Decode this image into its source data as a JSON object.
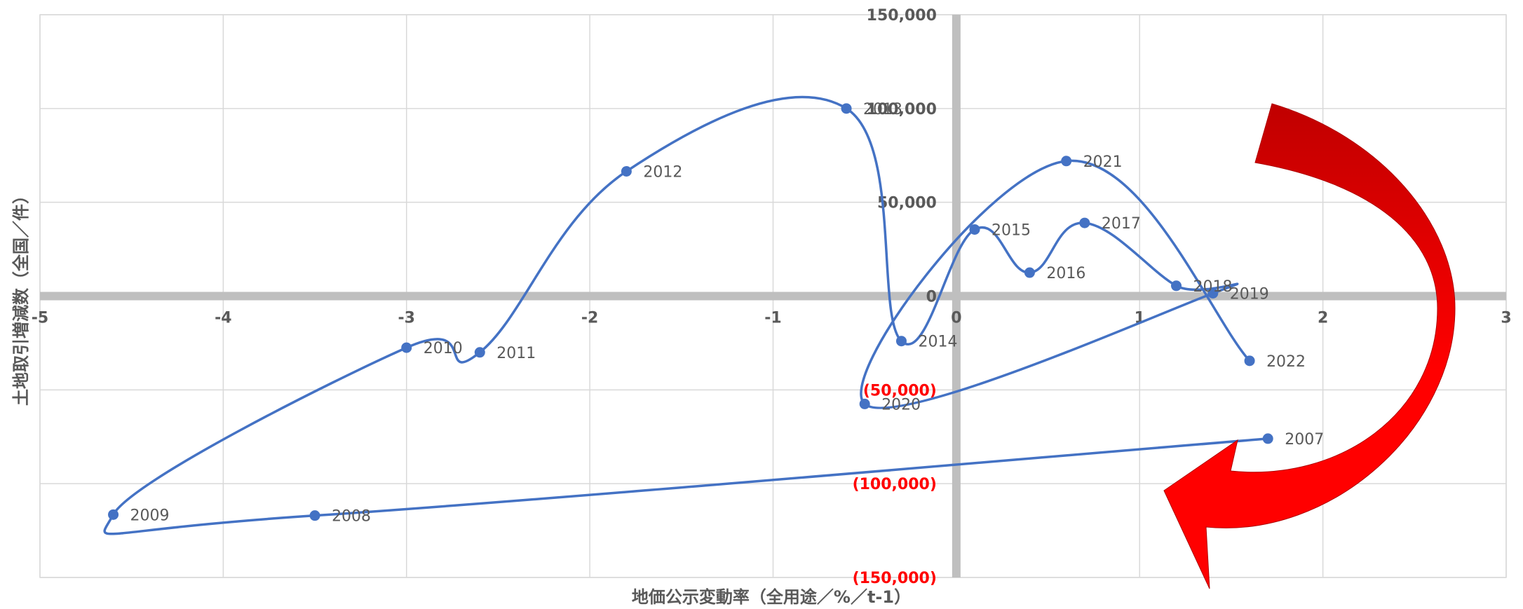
{
  "chart_data": {
    "type": "scatter",
    "title": "",
    "xlabel": "地価公示変動率（全用途／%／t-1）",
    "ylabel": "土地取引増減数（全国／件）",
    "xlim": [
      -5,
      3
    ],
    "ylim": [
      -150000,
      150000
    ],
    "x_ticks": [
      "-5",
      "-4",
      "-3",
      "-2",
      "-1",
      "0",
      "1",
      "2",
      "3"
    ],
    "y_ticks": [
      {
        "value": 150000,
        "label": "150,000"
      },
      {
        "value": 100000,
        "label": "100,000"
      },
      {
        "value": 50000,
        "label": "50,000"
      },
      {
        "value": 0,
        "label": "0"
      },
      {
        "value": -50000,
        "label": "(50,000)"
      },
      {
        "value": -100000,
        "label": "(100,000)"
      },
      {
        "value": -150000,
        "label": "(150,000)"
      }
    ],
    "grid": true,
    "smooth_line": true,
    "series_color": "#4472c4",
    "negative_label_color": "#ff0000",
    "axis_color": "#bfbfbf",
    "points": [
      {
        "label": "2007",
        "x": 1.7,
        "y": -76000
      },
      {
        "label": "2008",
        "x": -3.5,
        "y": -117000
      },
      {
        "label": "2009",
        "x": -4.6,
        "y": -116500
      },
      {
        "label": "2010",
        "x": -3.0,
        "y": -27500
      },
      {
        "label": "2011",
        "x": -2.6,
        "y": -30000
      },
      {
        "label": "2012",
        "x": -1.8,
        "y": 66500
      },
      {
        "label": "2013",
        "x": -0.6,
        "y": 100000
      },
      {
        "label": "2014",
        "x": -0.3,
        "y": -24000
      },
      {
        "label": "2015",
        "x": 0.1,
        "y": 35500
      },
      {
        "label": "2016",
        "x": 0.4,
        "y": 12500
      },
      {
        "label": "2017",
        "x": 0.7,
        "y": 39000
      },
      {
        "label": "2018",
        "x": 1.2,
        "y": 5500
      },
      {
        "label": "2019",
        "x": 1.4,
        "y": 1500
      },
      {
        "label": "2020",
        "x": -0.5,
        "y": -57500
      },
      {
        "label": "2021",
        "x": 0.6,
        "y": 72000
      },
      {
        "label": "2022",
        "x": 1.6,
        "y": -34500
      }
    ],
    "annotation": {
      "type": "curved-arrow",
      "colors": [
        "#c00000",
        "#ff0000"
      ]
    }
  }
}
